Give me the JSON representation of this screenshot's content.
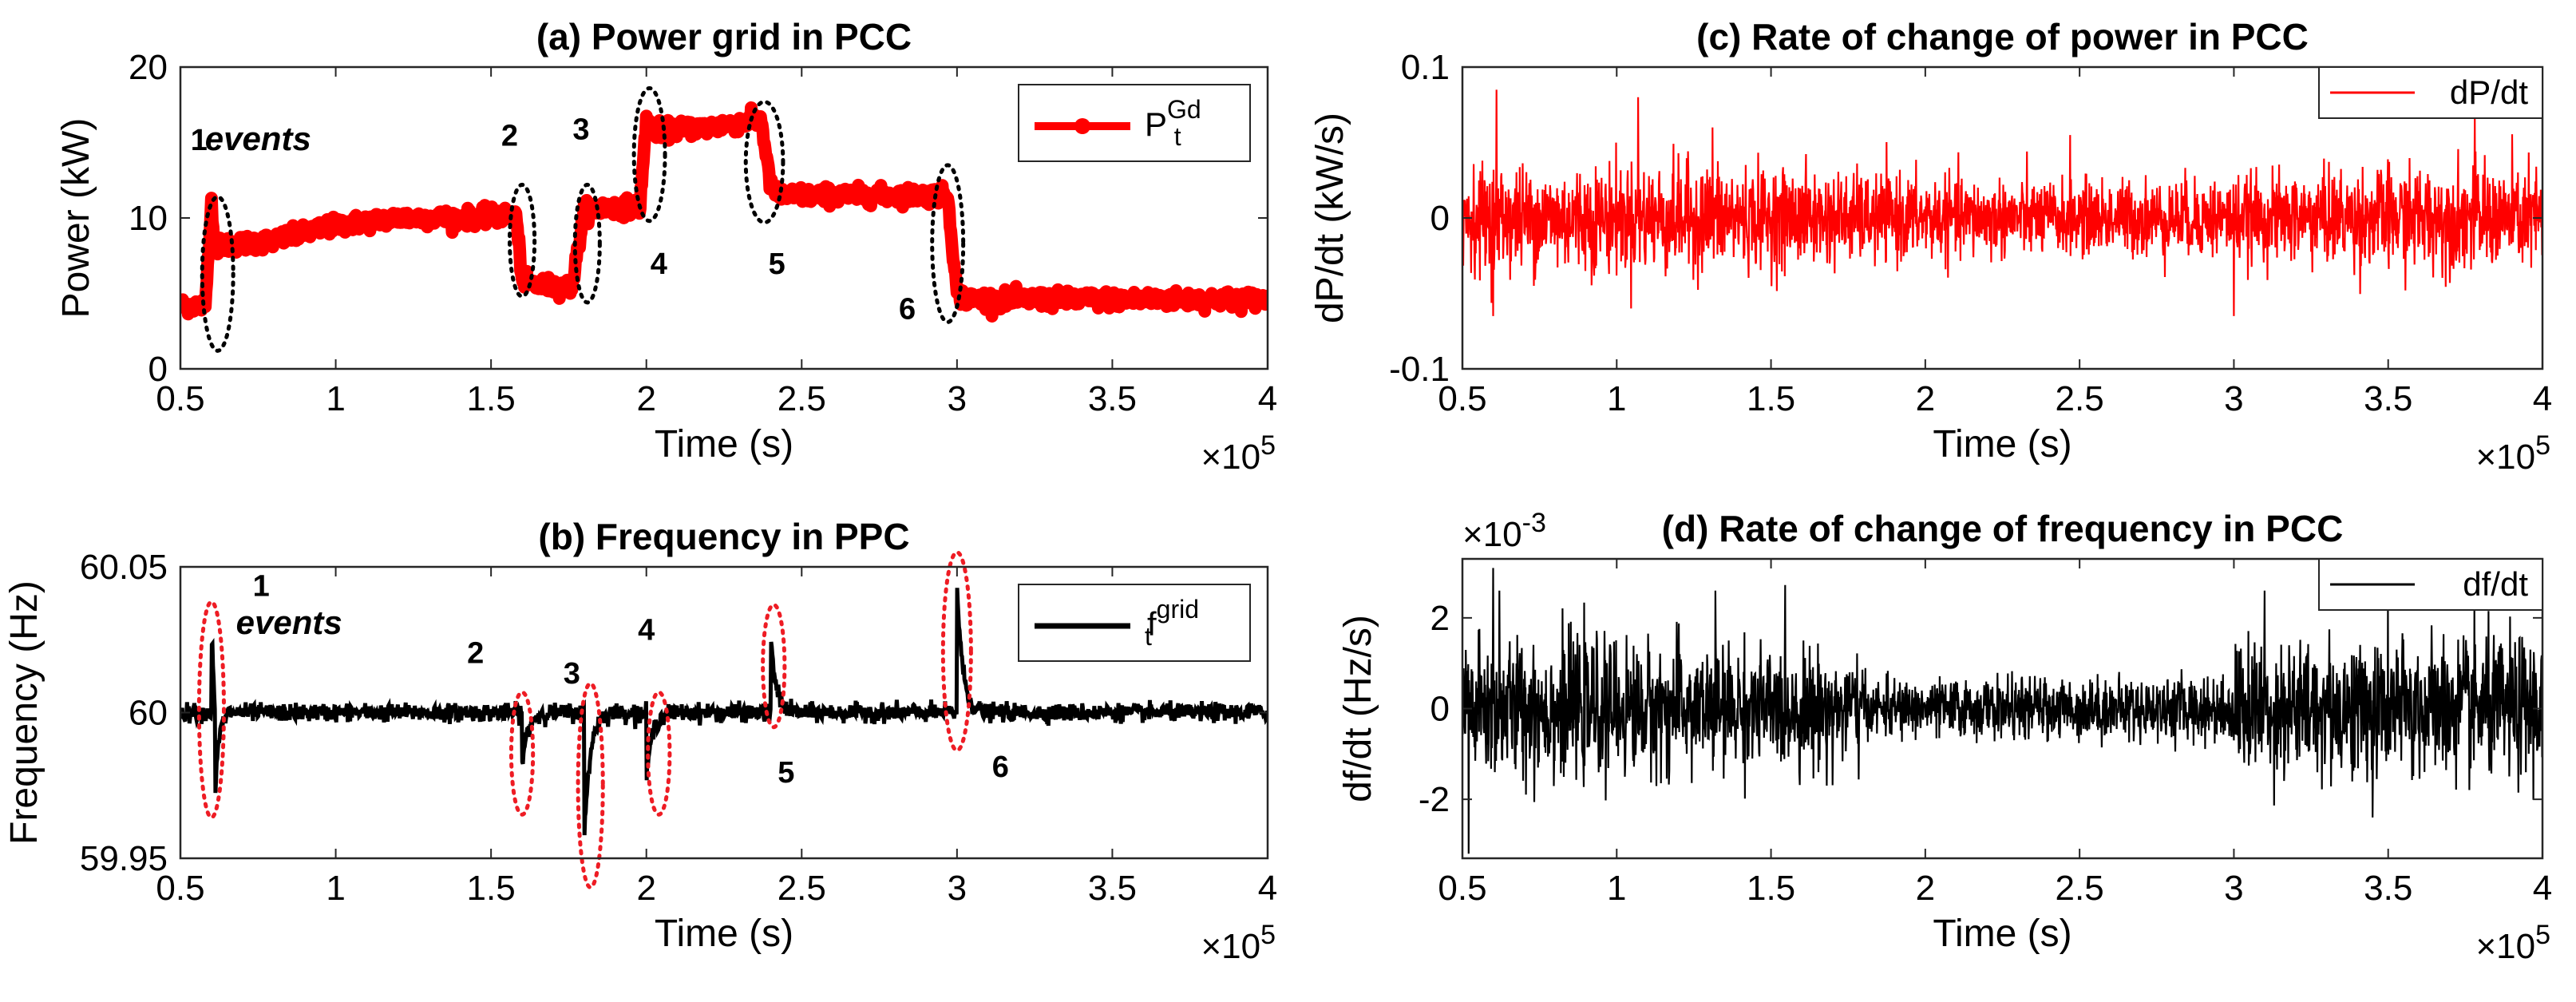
{
  "chart_data": [
    {
      "id": "a",
      "type": "line",
      "title": "(a) Power grid in PCC",
      "xlabel": "Time (s)",
      "ylabel": "Power (kW)",
      "x_multiplier": "×10^5",
      "xlim": [
        0.5,
        4
      ],
      "ylim": [
        0,
        20
      ],
      "xticks": [
        "0.5",
        "1",
        "1.5",
        "2",
        "2.5",
        "3",
        "3.5",
        "4"
      ],
      "yticks": [
        "0",
        "10",
        "20"
      ],
      "grid": false,
      "legend": {
        "position": "top-right",
        "base": "P",
        "sup": "Gd",
        "sub": "t"
      },
      "series": [
        {
          "name": "P_t^Gd",
          "color": "#ff0000",
          "x": [
            0.5,
            0.58,
            0.6,
            0.61,
            0.64,
            0.8,
            1.0,
            1.2,
            1.4,
            1.58,
            1.6,
            1.62,
            1.76,
            1.8,
            1.83,
            1.98,
            2.0,
            2.03,
            2.2,
            2.37,
            2.4,
            2.43,
            2.6,
            2.8,
            2.97,
            3.0,
            3.03,
            3.3,
            3.6,
            4.0
          ],
          "y": [
            4.2,
            4.2,
            11,
            8,
            8.2,
            8.5,
            9.5,
            10,
            10,
            10.2,
            6,
            5.6,
            5.4,
            10.5,
            10.6,
            10.8,
            16.5,
            15.8,
            16,
            16.5,
            12,
            11.5,
            11.5,
            11.5,
            11.5,
            5,
            4.6,
            4.6,
            4.6,
            4.6
          ],
          "noise": 0.55
        }
      ],
      "annotations": [
        {
          "text": "1",
          "x": 0.56,
          "y": 14.5
        },
        {
          "text": "events",
          "x": 0.75,
          "y": 14.5
        },
        {
          "text": "2",
          "x": 1.56,
          "y": 14.8
        },
        {
          "text": "3",
          "x": 1.79,
          "y": 15.2
        },
        {
          "text": "4",
          "x": 2.04,
          "y": 6.3
        },
        {
          "text": "5",
          "x": 2.42,
          "y": 6.3
        },
        {
          "text": "6",
          "x": 2.84,
          "y": 3.3
        }
      ],
      "event_ellipses": [
        {
          "x": 0.62,
          "y": 6.3,
          "rx": 0.05,
          "ry": 5.1
        },
        {
          "x": 1.6,
          "y": 8.5,
          "rx": 0.04,
          "ry": 3.7
        },
        {
          "x": 1.81,
          "y": 8.3,
          "rx": 0.04,
          "ry": 3.9
        },
        {
          "x": 2.01,
          "y": 14.2,
          "rx": 0.05,
          "ry": 4.4
        },
        {
          "x": 2.38,
          "y": 13.7,
          "rx": 0.06,
          "ry": 4.0
        },
        {
          "x": 2.97,
          "y": 8.3,
          "rx": 0.05,
          "ry": 5.2
        }
      ],
      "ellipse_color": "#000000"
    },
    {
      "id": "b",
      "type": "line",
      "title": "(b) Frequency in PPC",
      "xlabel": "Time (s)",
      "ylabel": "Frequency (Hz)",
      "x_multiplier": "×10^5",
      "xlim": [
        0.5,
        4
      ],
      "ylim": [
        59.95,
        60.05
      ],
      "xticks": [
        "0.5",
        "1",
        "1.5",
        "2",
        "2.5",
        "3",
        "3.5",
        "4"
      ],
      "yticks": [
        "59.95",
        "60",
        "60.05"
      ],
      "grid": false,
      "legend": {
        "position": "top-right",
        "base": "f",
        "sup": "grid",
        "sub": "t"
      },
      "series": [
        {
          "name": "f_t^grid",
          "color": "#000000",
          "baseline": 60.0,
          "noise": 0.0025,
          "events": [
            {
              "x": 0.6,
              "type": "up-down",
              "amplitude": 0.028
            },
            {
              "x": 1.6,
              "type": "dip",
              "amplitude": -0.018
            },
            {
              "x": 1.8,
              "type": "dip",
              "amplitude": -0.044
            },
            {
              "x": 2.0,
              "type": "dip",
              "amplitude": -0.023
            },
            {
              "x": 2.4,
              "type": "spike",
              "amplitude": 0.025
            },
            {
              "x": 3.0,
              "type": "spike",
              "amplitude": 0.044
            }
          ]
        }
      ],
      "annotations": [
        {
          "text": "1",
          "x": 0.76,
          "y": 60.04
        },
        {
          "text": "events",
          "x": 0.85,
          "y": 60.027
        },
        {
          "text": "2",
          "x": 1.45,
          "y": 60.017
        },
        {
          "text": "3",
          "x": 1.76,
          "y": 60.01
        },
        {
          "text": "4",
          "x": 2.0,
          "y": 60.025
        },
        {
          "text": "5",
          "x": 2.45,
          "y": 59.976
        },
        {
          "text": "6",
          "x": 3.14,
          "y": 59.978
        }
      ],
      "event_ellipses": [
        {
          "x": 0.6,
          "y": 60.001,
          "rx": 0.04,
          "ry": 0.037
        },
        {
          "x": 1.6,
          "y": 59.986,
          "rx": 0.035,
          "ry": 0.021
        },
        {
          "x": 1.82,
          "y": 59.975,
          "rx": 0.04,
          "ry": 0.035
        },
        {
          "x": 2.04,
          "y": 59.986,
          "rx": 0.035,
          "ry": 0.021
        },
        {
          "x": 2.41,
          "y": 60.016,
          "rx": 0.035,
          "ry": 0.021
        },
        {
          "x": 3.0,
          "y": 60.021,
          "rx": 0.045,
          "ry": 0.034
        }
      ],
      "ellipse_color": "#ee1c24"
    },
    {
      "id": "c",
      "type": "line",
      "title": "(c) Rate of change of power in PCC",
      "xlabel": "Time (s)",
      "ylabel": "dP/dt (kW/s)",
      "x_multiplier": "×10^5",
      "xlim": [
        0.5,
        4
      ],
      "ylim": [
        -0.1,
        0.1
      ],
      "xticks": [
        "0.5",
        "1",
        "1.5",
        "2",
        "2.5",
        "3",
        "3.5",
        "4"
      ],
      "yticks": [
        "-0.1",
        "0",
        "0.1"
      ],
      "grid": false,
      "legend": {
        "position": "top-right",
        "text": "dP/dt"
      },
      "series": [
        {
          "name": "dP/dt",
          "color": "#ff0000",
          "center": 0,
          "envelope": [
            {
              "x": 0.5,
              "a": 0.028
            },
            {
              "x": 1.2,
              "a": 0.03
            },
            {
              "x": 1.8,
              "a": 0.024
            },
            {
              "x": 2.4,
              "a": 0.02
            },
            {
              "x": 3.0,
              "a": 0.022
            },
            {
              "x": 3.5,
              "a": 0.028
            },
            {
              "x": 4.0,
              "a": 0.028
            }
          ],
          "peaks": [
            {
              "x": 0.61,
              "y": 0.085
            },
            {
              "x": 0.6,
              "y": -0.065
            },
            {
              "x": 1.07,
              "y": 0.08
            },
            {
              "x": 1.31,
              "y": 0.06
            },
            {
              "x": 3.0,
              "y": -0.065
            },
            {
              "x": 3.78,
              "y": 0.07
            },
            {
              "x": 2.47,
              "y": 0.055
            }
          ]
        }
      ]
    },
    {
      "id": "d",
      "type": "line",
      "title": "(d) Rate of change of frequency in PCC",
      "xlabel": "Time (s)",
      "ylabel": "df/dt (Hz/s)",
      "x_multiplier": "×10^5",
      "y_multiplier": "×10^-3",
      "xlim": [
        0.5,
        4
      ],
      "ylim": [
        -3.3,
        3.3
      ],
      "xticks": [
        "0.5",
        "1",
        "1.5",
        "2",
        "2.5",
        "3",
        "3.5",
        "4"
      ],
      "yticks": [
        "-2",
        "0",
        "2"
      ],
      "grid": false,
      "legend": {
        "position": "top-right",
        "text": "df/dt"
      },
      "series": [
        {
          "name": "df/dt",
          "color": "#000000",
          "center": 0,
          "envelope": [
            {
              "x": 0.5,
              "a": 1.3
            },
            {
              "x": 1.0,
              "a": 1.2
            },
            {
              "x": 1.78,
              "a": 1.0
            },
            {
              "x": 1.81,
              "a": 0.5
            },
            {
              "x": 2.5,
              "a": 0.55
            },
            {
              "x": 2.99,
              "a": 0.6
            },
            {
              "x": 3.01,
              "a": 1.2
            },
            {
              "x": 4.0,
              "a": 1.3
            }
          ],
          "peaks": [
            {
              "x": 0.52,
              "y": -3.2
            },
            {
              "x": 0.6,
              "y": 3.1
            },
            {
              "x": 0.62,
              "y": 2.6
            },
            {
              "x": 1.32,
              "y": 2.6
            },
            {
              "x": 3.1,
              "y": 2.6
            },
            {
              "x": 3.45,
              "y": -2.4
            }
          ]
        }
      ]
    }
  ]
}
